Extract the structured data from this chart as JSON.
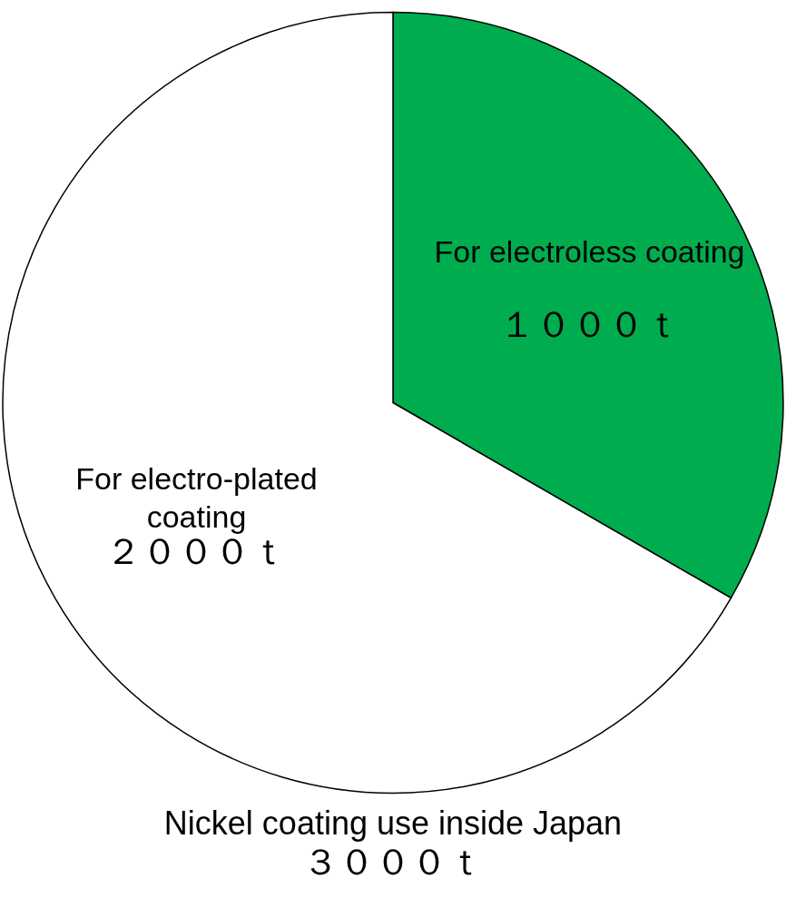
{
  "chart_data": {
    "type": "pie",
    "title": "Nickel coating use inside Japan",
    "subtitle": "３０００ｔ",
    "categories": [
      "For electroless coating",
      "For electro-plated coating"
    ],
    "values": [
      1000,
      2000
    ],
    "colors": [
      "#00ad4e",
      "#ffffff"
    ],
    "value_labels": [
      "１０００ｔ",
      "２０００ｔ"
    ],
    "legend": false
  }
}
